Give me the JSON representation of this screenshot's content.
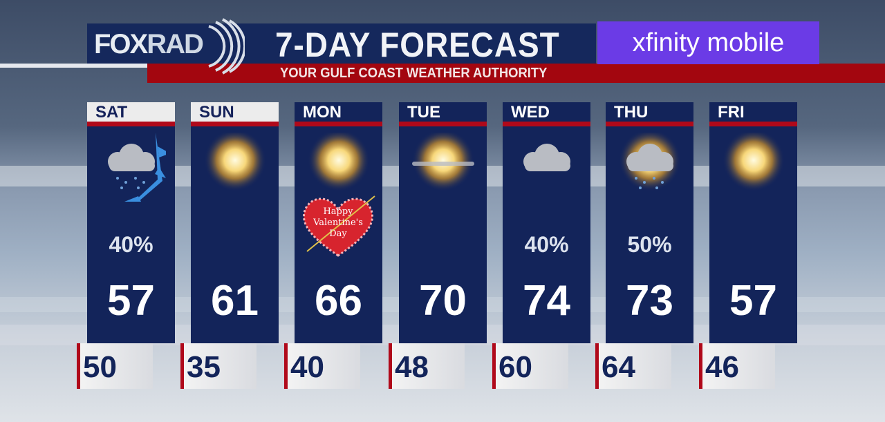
{
  "header": {
    "logo": {
      "fox": "FOX",
      "rad": "RAD"
    },
    "title": "7-DAY FORECAST",
    "subtitle": "YOUR GULF COAST WEATHER AUTHORITY",
    "sponsor": "xfinity mobile"
  },
  "colors": {
    "navy": "#13245a",
    "red": "#b0091a",
    "sponsor": "#6b3be6"
  },
  "days": [
    {
      "day": "SAT",
      "icon": "cloud-rain-cold-front-icon",
      "pop": "40%",
      "high": "57",
      "low": "50"
    },
    {
      "day": "SUN",
      "icon": "sun-icon",
      "pop": "",
      "high": "61",
      "low": "35"
    },
    {
      "day": "MON",
      "icon": "sun-icon",
      "pop": "",
      "high": "66",
      "low": "40",
      "badge": {
        "line1": "Happy",
        "line2": "Valentine's",
        "line3": "Day"
      }
    },
    {
      "day": "TUE",
      "icon": "sun-haze-icon",
      "pop": "",
      "high": "70",
      "low": "48"
    },
    {
      "day": "WED",
      "icon": "cloud-icon",
      "pop": "40%",
      "high": "74",
      "low": "60"
    },
    {
      "day": "THU",
      "icon": "sun-cloud-rain-icon",
      "pop": "50%",
      "high": "73",
      "low": "64"
    },
    {
      "day": "FRI",
      "icon": "sun-icon",
      "pop": "",
      "high": "57",
      "low": "46"
    }
  ]
}
